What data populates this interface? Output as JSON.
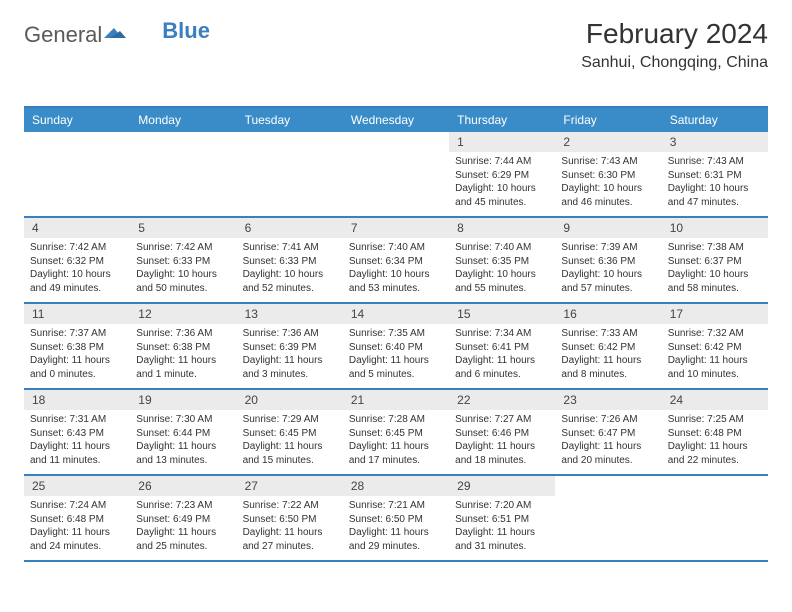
{
  "logo": {
    "part1": "General",
    "part2": "Blue"
  },
  "title": "February 2024",
  "subtitle": "Sanhui, Chongqing, China",
  "colors": {
    "header_bg": "#3a8cc8",
    "header_fg": "#ffffff",
    "rule": "#3a7fbf",
    "daynum_bg": "#ebebeb",
    "text": "#333333"
  },
  "day_names": [
    "Sunday",
    "Monday",
    "Tuesday",
    "Wednesday",
    "Thursday",
    "Friday",
    "Saturday"
  ],
  "weeks": [
    [
      null,
      null,
      null,
      null,
      {
        "n": "1",
        "sr": "7:44 AM",
        "ss": "6:29 PM",
        "dl": "10 hours and 45 minutes."
      },
      {
        "n": "2",
        "sr": "7:43 AM",
        "ss": "6:30 PM",
        "dl": "10 hours and 46 minutes."
      },
      {
        "n": "3",
        "sr": "7:43 AM",
        "ss": "6:31 PM",
        "dl": "10 hours and 47 minutes."
      }
    ],
    [
      {
        "n": "4",
        "sr": "7:42 AM",
        "ss": "6:32 PM",
        "dl": "10 hours and 49 minutes."
      },
      {
        "n": "5",
        "sr": "7:42 AM",
        "ss": "6:33 PM",
        "dl": "10 hours and 50 minutes."
      },
      {
        "n": "6",
        "sr": "7:41 AM",
        "ss": "6:33 PM",
        "dl": "10 hours and 52 minutes."
      },
      {
        "n": "7",
        "sr": "7:40 AM",
        "ss": "6:34 PM",
        "dl": "10 hours and 53 minutes."
      },
      {
        "n": "8",
        "sr": "7:40 AM",
        "ss": "6:35 PM",
        "dl": "10 hours and 55 minutes."
      },
      {
        "n": "9",
        "sr": "7:39 AM",
        "ss": "6:36 PM",
        "dl": "10 hours and 57 minutes."
      },
      {
        "n": "10",
        "sr": "7:38 AM",
        "ss": "6:37 PM",
        "dl": "10 hours and 58 minutes."
      }
    ],
    [
      {
        "n": "11",
        "sr": "7:37 AM",
        "ss": "6:38 PM",
        "dl": "11 hours and 0 minutes."
      },
      {
        "n": "12",
        "sr": "7:36 AM",
        "ss": "6:38 PM",
        "dl": "11 hours and 1 minute."
      },
      {
        "n": "13",
        "sr": "7:36 AM",
        "ss": "6:39 PM",
        "dl": "11 hours and 3 minutes."
      },
      {
        "n": "14",
        "sr": "7:35 AM",
        "ss": "6:40 PM",
        "dl": "11 hours and 5 minutes."
      },
      {
        "n": "15",
        "sr": "7:34 AM",
        "ss": "6:41 PM",
        "dl": "11 hours and 6 minutes."
      },
      {
        "n": "16",
        "sr": "7:33 AM",
        "ss": "6:42 PM",
        "dl": "11 hours and 8 minutes."
      },
      {
        "n": "17",
        "sr": "7:32 AM",
        "ss": "6:42 PM",
        "dl": "11 hours and 10 minutes."
      }
    ],
    [
      {
        "n": "18",
        "sr": "7:31 AM",
        "ss": "6:43 PM",
        "dl": "11 hours and 11 minutes."
      },
      {
        "n": "19",
        "sr": "7:30 AM",
        "ss": "6:44 PM",
        "dl": "11 hours and 13 minutes."
      },
      {
        "n": "20",
        "sr": "7:29 AM",
        "ss": "6:45 PM",
        "dl": "11 hours and 15 minutes."
      },
      {
        "n": "21",
        "sr": "7:28 AM",
        "ss": "6:45 PM",
        "dl": "11 hours and 17 minutes."
      },
      {
        "n": "22",
        "sr": "7:27 AM",
        "ss": "6:46 PM",
        "dl": "11 hours and 18 minutes."
      },
      {
        "n": "23",
        "sr": "7:26 AM",
        "ss": "6:47 PM",
        "dl": "11 hours and 20 minutes."
      },
      {
        "n": "24",
        "sr": "7:25 AM",
        "ss": "6:48 PM",
        "dl": "11 hours and 22 minutes."
      }
    ],
    [
      {
        "n": "25",
        "sr": "7:24 AM",
        "ss": "6:48 PM",
        "dl": "11 hours and 24 minutes."
      },
      {
        "n": "26",
        "sr": "7:23 AM",
        "ss": "6:49 PM",
        "dl": "11 hours and 25 minutes."
      },
      {
        "n": "27",
        "sr": "7:22 AM",
        "ss": "6:50 PM",
        "dl": "11 hours and 27 minutes."
      },
      {
        "n": "28",
        "sr": "7:21 AM",
        "ss": "6:50 PM",
        "dl": "11 hours and 29 minutes."
      },
      {
        "n": "29",
        "sr": "7:20 AM",
        "ss": "6:51 PM",
        "dl": "11 hours and 31 minutes."
      },
      null,
      null
    ]
  ],
  "labels": {
    "sunrise": "Sunrise: ",
    "sunset": "Sunset: ",
    "daylight": "Daylight: "
  }
}
